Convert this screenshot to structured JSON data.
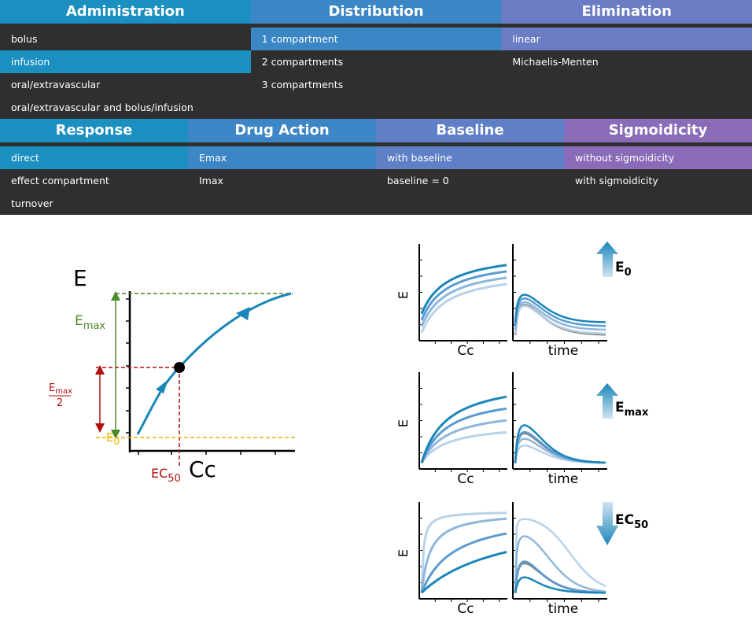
{
  "menu_rows": [
    {
      "sections": [
        {
          "title": "Administration",
          "color": "#1a8fc0",
          "selected": 1,
          "options": [
            "bolus",
            "infusion",
            "oral/extravascular",
            "oral/extravascular and bolus/infusion"
          ]
        },
        {
          "title": "Distribution",
          "color": "#3b86c5",
          "selected": 0,
          "options": [
            "1 compartment",
            "2 compartments",
            "3 compartments"
          ]
        },
        {
          "title": "Elimination",
          "color": "#6a7cc4",
          "selected": 0,
          "options": [
            "linear",
            "Michaelis-Menten"
          ]
        }
      ]
    },
    {
      "sections": [
        {
          "title": "Response",
          "color": "#1a8fc0",
          "selected": 0,
          "options": [
            "direct",
            "effect compartment",
            "turnover"
          ]
        },
        {
          "title": "Drug Action",
          "color": "#3d86c6",
          "selected": 0,
          "options": [
            "Emax",
            "Imax"
          ]
        },
        {
          "title": "Baseline",
          "color": "#5f7fc6",
          "selected": 0,
          "options": [
            "with baseline",
            "baseline = 0"
          ]
        },
        {
          "title": "Sigmoidicity",
          "color": "#8a6bb8",
          "selected": 0,
          "options": [
            "without sigmoidicity",
            "with sigmoidicity"
          ]
        }
      ]
    }
  ],
  "main_plot": {
    "y_label": "E",
    "x_label": "Cc",
    "emax_label": {
      "base": "E",
      "sub": "max"
    },
    "half_label": {
      "base": "E",
      "sub": "max",
      "denominator": "2"
    },
    "e0_label": {
      "base": "E",
      "sub": "0"
    },
    "ec50_label": {
      "base": "EC",
      "sub": "50"
    }
  },
  "panels": [
    {
      "y_label": "E",
      "x_left": "Cc",
      "x_right": "time",
      "arrow": {
        "base": "E",
        "sub": "0"
      }
    },
    {
      "y_label": "E",
      "x_left": "Cc",
      "x_right": "time",
      "arrow": {
        "base": "E",
        "sub": "max"
      }
    },
    {
      "y_label": "E",
      "x_left": "Cc",
      "x_right": "time",
      "arrow": {
        "base": "EC",
        "sub": "50"
      }
    }
  ]
}
